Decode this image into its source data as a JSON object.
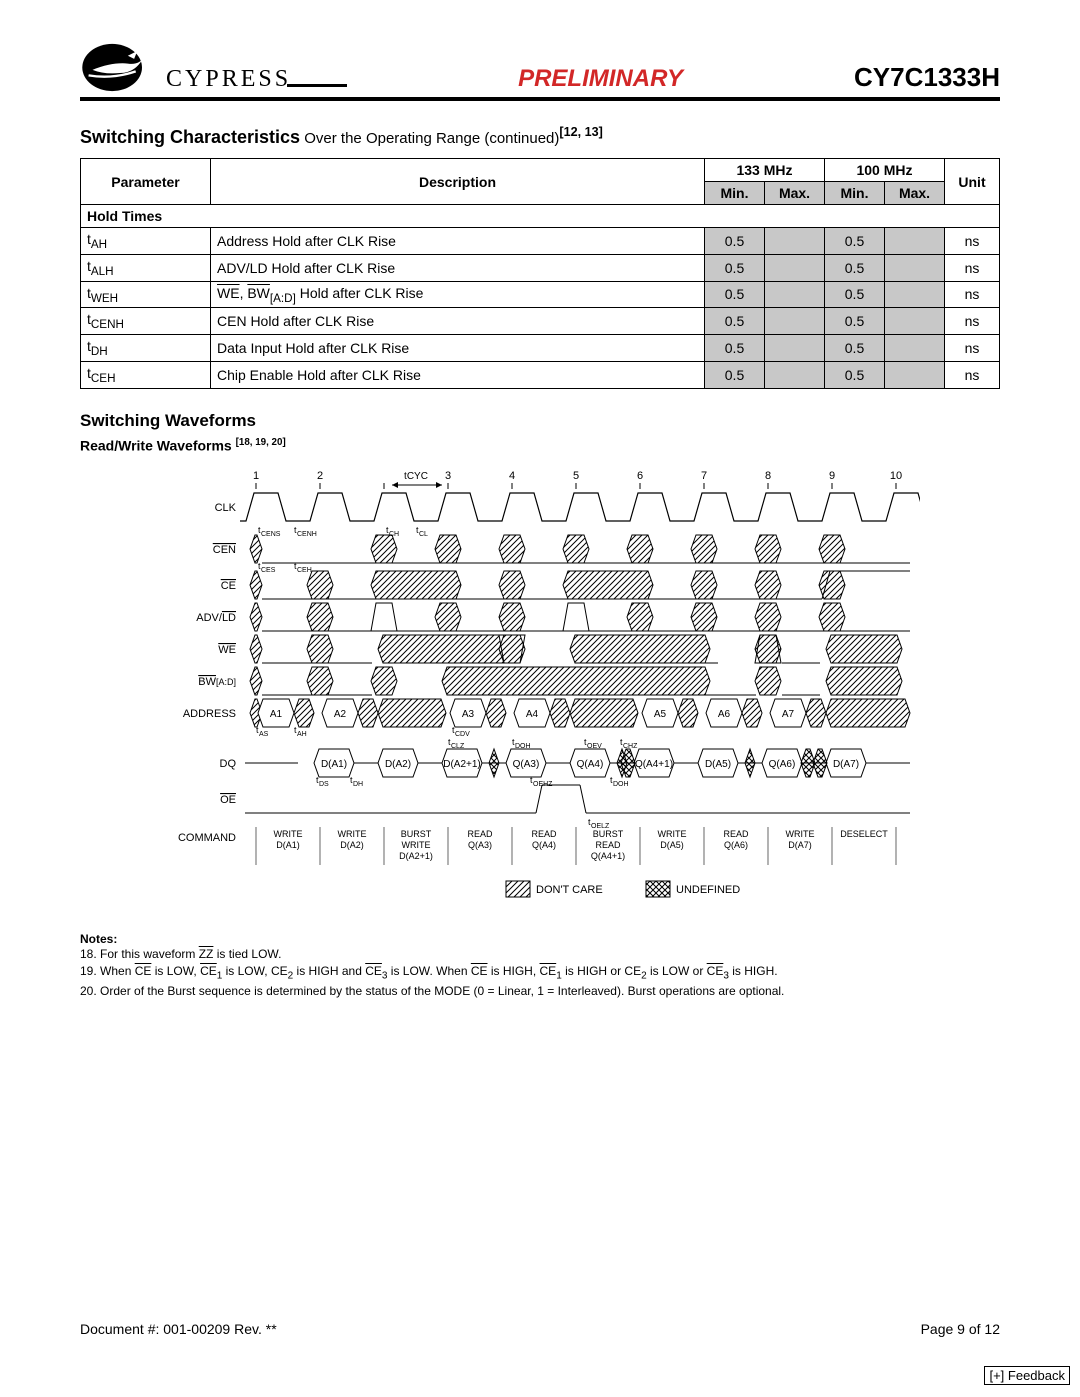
{
  "header": {
    "company": "CYPRESS",
    "center": "PRELIMINARY",
    "center_color": "#d22727",
    "part": "CY7C1333H"
  },
  "section_title": "Switching Characteristics",
  "section_subtitle": " Over the Operating Range (continued)",
  "section_refs": "[12, 13]",
  "table": {
    "group_133": "133 MHz",
    "group_100": "100 MHz",
    "col_param": "Parameter",
    "col_desc": "Description",
    "col_min": "Min.",
    "col_max": "Max.",
    "col_unit": "Unit",
    "section_label": "Hold Times",
    "rows": [
      {
        "param_base": "t",
        "param_sub": "AH",
        "desc_pre": "Address Hold after CLK Rise",
        "desc_over": "",
        "desc_post": "",
        "min133": "0.5",
        "max133": "",
        "min100": "0.5",
        "max100": "",
        "unit": "ns"
      },
      {
        "param_base": "t",
        "param_sub": "ALH",
        "desc_pre": "ADV/LD Hold after CLK Rise",
        "desc_over": "",
        "desc_post": "",
        "min133": "0.5",
        "max133": "",
        "min100": "0.5",
        "max100": "",
        "unit": "ns"
      },
      {
        "param_base": "t",
        "param_sub": "WEH",
        "desc_pre": "",
        "desc_composite": true,
        "min133": "0.5",
        "max133": "",
        "min100": "0.5",
        "max100": "",
        "unit": "ns"
      },
      {
        "param_base": "t",
        "param_sub": "CENH",
        "desc_pre": "CEN Hold after CLK Rise",
        "desc_over": "",
        "desc_post": "",
        "min133": "0.5",
        "max133": "",
        "min100": "0.5",
        "max100": "",
        "unit": "ns"
      },
      {
        "param_base": "t",
        "param_sub": "DH",
        "desc_pre": "Data Input Hold after CLK Rise",
        "desc_over": "",
        "desc_post": "",
        "min133": "0.5",
        "max133": "",
        "min100": "0.5",
        "max100": "",
        "unit": "ns"
      },
      {
        "param_base": "t",
        "param_sub": "CEH",
        "desc_pre": "Chip Enable Hold after CLK Rise",
        "desc_over": "",
        "desc_post": "",
        "min133": "0.5",
        "max133": "",
        "min100": "0.5",
        "max100": "",
        "unit": "ns"
      }
    ]
  },
  "waveform": {
    "title": "Switching Waveforms",
    "subtitle": "Read/Write Waveforms ",
    "subtitle_refs": "[18, 19, 20]",
    "ticks": [
      "1",
      "2",
      "",
      "3",
      "4",
      "5",
      "6",
      "7",
      "8",
      "9",
      "10"
    ],
    "tcyc_label": "tCYC",
    "signals": [
      "CLK",
      "CEN",
      "CE",
      "ADV/LD",
      "WE",
      "BW[A:D]",
      "ADDRESS",
      "DQ",
      "OE",
      "COMMAND"
    ],
    "signal_overline": [
      false,
      true,
      true,
      false,
      true,
      true,
      false,
      false,
      true,
      false
    ],
    "advld_over_part": "LD",
    "bw_over_part": "BW",
    "addresses": [
      "A1",
      "A2",
      "A3",
      "A4",
      "A5",
      "A6",
      "A7"
    ],
    "dq_values": [
      "D(A1)",
      "D(A2)",
      "D(A2+1)",
      "Q(A3)",
      "Q(A4)",
      "Q(A4+1)",
      "D(A5)",
      "Q(A6)",
      "D(A7)"
    ],
    "commands": [
      {
        "l1": "WRITE",
        "l2": "D(A1)"
      },
      {
        "l1": "WRITE",
        "l2": "D(A2)"
      },
      {
        "l1": "BURST",
        "l2": "WRITE",
        "l3": "D(A2+1)"
      },
      {
        "l1": "READ",
        "l2": "Q(A3)"
      },
      {
        "l1": "READ",
        "l2": "Q(A4)"
      },
      {
        "l1": "BURST",
        "l2": "READ",
        "l3": "Q(A4+1)"
      },
      {
        "l1": "WRITE",
        "l2": "D(A5)"
      },
      {
        "l1": "READ",
        "l2": "Q(A6)"
      },
      {
        "l1": "WRITE",
        "l2": "D(A7)"
      },
      {
        "l1": "DESELECT",
        "l2": ""
      }
    ],
    "timing_labels": [
      "tCENS",
      "tCENH",
      "tCH",
      "tCL",
      "tCES",
      "tCEH",
      "tAS",
      "tAH",
      "tCDV",
      "tCLZ",
      "tDOH",
      "tOEV",
      "tCHZ",
      "tDS",
      "tDH",
      "tOEHZ",
      "tDOH",
      "tOELZ"
    ],
    "legend_dontcare": "DON'T CARE",
    "legend_undefined": "UNDEFINED"
  },
  "notes": {
    "title": "Notes:",
    "items": [
      "18. For this waveform ZZ is tied LOW.",
      "19. When CE is LOW, CE1 is LOW, CE2 is HIGH and CE3 is LOW. When CE is HIGH, CE1 is HIGH or CE2 is LOW or CE3 is HIGH.",
      "20. Order of the Burst sequence is determined by the status of the MODE (0 = Linear, 1 = Interleaved). Burst operations are optional."
    ],
    "note18_pre": "18. For this waveform ",
    "note18_zz": "ZZ",
    "note18_post": " is tied LOW.",
    "note19_parts": [
      "19. When ",
      "CE",
      " is LOW, ",
      "CE",
      "1",
      " is LOW, CE",
      "2",
      " is HIGH and ",
      "CE",
      "3",
      " is LOW. When ",
      "CE",
      " is HIGH, ",
      "CE",
      "1",
      " is HIGH or CE",
      "2",
      " is LOW or ",
      "CE",
      "3",
      " is HIGH."
    ]
  },
  "footer": {
    "left": "Document #: 001-00209 Rev. **",
    "right": "Page 9 of 12",
    "feedback": "[+] Feedback"
  },
  "colors": {
    "hatch": "#000000",
    "shade": "#c8c8c8",
    "background": "#ffffff"
  }
}
